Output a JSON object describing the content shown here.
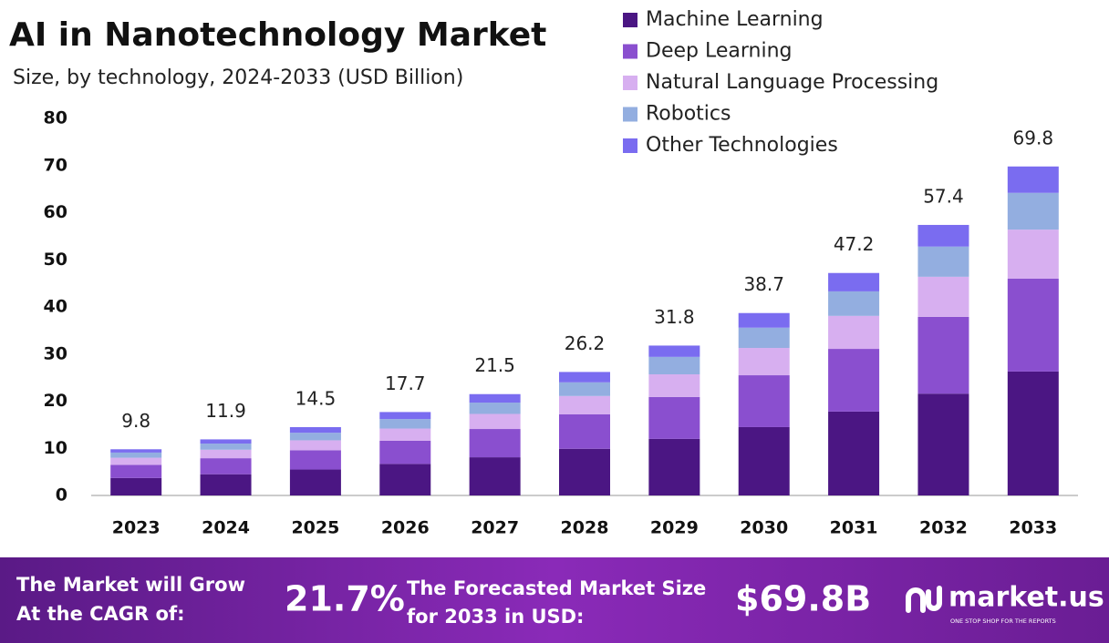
{
  "chart_data": {
    "type": "stacked-bar",
    "title": "AI in Nanotechnology Market",
    "subtitle": "Size, by technology, 2024-2033 (USD Billion)",
    "categories": [
      "2023",
      "2024",
      "2025",
      "2026",
      "2027",
      "2028",
      "2029",
      "2030",
      "2031",
      "2032",
      "2033"
    ],
    "series": [
      {
        "name": "Machine Learning",
        "color": "#4b1683",
        "values": [
          3.7,
          4.5,
          5.5,
          6.7,
          8.1,
          9.9,
          12.0,
          14.5,
          17.8,
          21.6,
          26.3
        ]
      },
      {
        "name": "Deep Learning",
        "color": "#8a4fcf",
        "values": [
          2.8,
          3.4,
          4.1,
          4.9,
          6.0,
          7.3,
          8.9,
          11.0,
          13.3,
          16.3,
          19.7
        ]
      },
      {
        "name": "Natural Language Processing",
        "color": "#d7aff0",
        "values": [
          1.5,
          1.8,
          2.1,
          2.6,
          3.2,
          3.9,
          4.8,
          5.8,
          7.0,
          8.5,
          10.4
        ]
      },
      {
        "name": "Robotics",
        "color": "#93aee0",
        "values": [
          1.1,
          1.3,
          1.6,
          2.0,
          2.4,
          2.9,
          3.7,
          4.3,
          5.2,
          6.4,
          7.8
        ]
      },
      {
        "name": "Other Technologies",
        "color": "#7a6cf0",
        "values": [
          0.7,
          0.9,
          1.2,
          1.5,
          1.8,
          2.2,
          2.4,
          3.1,
          3.9,
          4.6,
          5.6
        ]
      }
    ],
    "totals": [
      9.8,
      11.9,
      14.5,
      17.7,
      21.5,
      26.2,
      31.8,
      38.7,
      47.2,
      57.4,
      69.8
    ],
    "ylim": [
      0,
      80
    ],
    "yticks": [
      0,
      10,
      20,
      30,
      40,
      50,
      60,
      70,
      80
    ],
    "grid": false
  },
  "footer": {
    "cagr_label": [
      "The Market will Grow",
      "At the CAGR of:"
    ],
    "cagr": "21.7%",
    "forecast_label": [
      "The Forecasted Market Size",
      "for 2033 in USD:"
    ],
    "forecast": "$69.8B",
    "brand": "market.us",
    "tagline": "ONE STOP SHOP FOR THE REPORTS"
  }
}
